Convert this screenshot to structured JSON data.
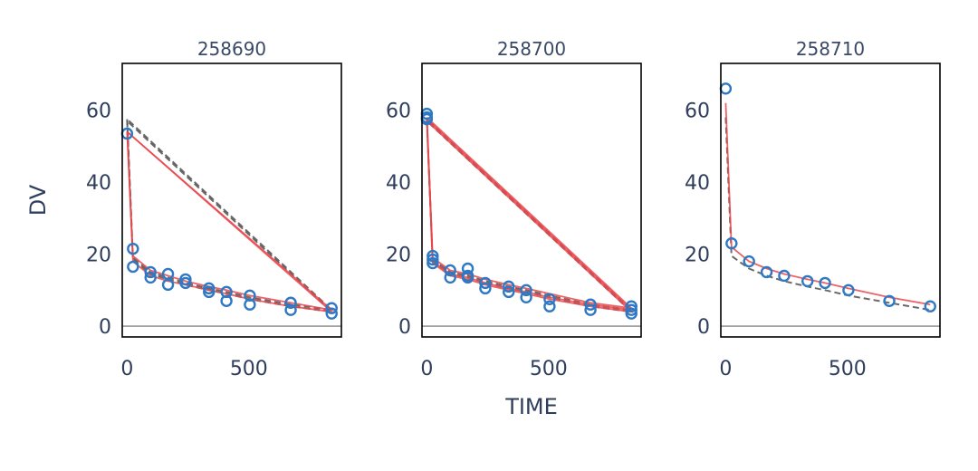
{
  "chart_data": {
    "type": "scatter",
    "xlabel": "TIME",
    "ylabel": "DV",
    "xlim": [
      -20,
      880
    ],
    "ylim": [
      -3,
      73
    ],
    "xticks": [
      "0",
      "500"
    ],
    "yticks": [
      "0",
      "20",
      "40",
      "60"
    ],
    "colors": {
      "observed": "#2f78c4",
      "individual_pred": "#e8474c",
      "population_pred": "#5a5a5a"
    },
    "panels": [
      {
        "title": "258690",
        "observed": [
          {
            "x": 0,
            "y": 53.5
          },
          {
            "x": 24,
            "y": 21.5
          },
          {
            "x": 24,
            "y": 16.5
          },
          {
            "x": 96,
            "y": 15
          },
          {
            "x": 96,
            "y": 13.5
          },
          {
            "x": 168,
            "y": 14.5
          },
          {
            "x": 168,
            "y": 11.5
          },
          {
            "x": 240,
            "y": 13
          },
          {
            "x": 240,
            "y": 12
          },
          {
            "x": 336,
            "y": 10.5
          },
          {
            "x": 336,
            "y": 9.5
          },
          {
            "x": 408,
            "y": 9.5
          },
          {
            "x": 408,
            "y": 7
          },
          {
            "x": 504,
            "y": 8.5
          },
          {
            "x": 504,
            "y": 6
          },
          {
            "x": 672,
            "y": 6.5
          },
          {
            "x": 672,
            "y": 4.5
          },
          {
            "x": 840,
            "y": 5
          },
          {
            "x": 840,
            "y": 3.5
          }
        ],
        "ipred": [
          [
            [
              0,
              54
            ],
            [
              24,
              19.5
            ],
            [
              96,
              15.5
            ],
            [
              168,
              14
            ],
            [
              240,
              12.5
            ],
            [
              336,
              11
            ],
            [
              408,
              10
            ],
            [
              504,
              8.5
            ],
            [
              672,
              6.5
            ],
            [
              840,
              4.5
            ],
            [
              0,
              54
            ]
          ],
          [
            [
              0,
              54
            ],
            [
              24,
              18
            ],
            [
              96,
              14
            ],
            [
              168,
              12.5
            ],
            [
              240,
              11.5
            ],
            [
              336,
              10
            ],
            [
              408,
              9
            ],
            [
              504,
              7.5
            ],
            [
              672,
              5.5
            ],
            [
              840,
              4
            ],
            [
              0,
              54
            ]
          ]
        ],
        "pred": [
          [
            [
              0,
              57.5
            ],
            [
              24,
              19
            ],
            [
              96,
              15
            ],
            [
              168,
              13.5
            ],
            [
              240,
              12
            ],
            [
              336,
              10.5
            ],
            [
              408,
              9.5
            ],
            [
              504,
              8
            ],
            [
              672,
              6
            ],
            [
              840,
              4.5
            ],
            [
              0,
              57.5
            ]
          ],
          [
            [
              0,
              57
            ],
            [
              24,
              18.5
            ],
            [
              96,
              14.5
            ],
            [
              168,
              13
            ],
            [
              240,
              11.5
            ],
            [
              336,
              10
            ],
            [
              408,
              9
            ],
            [
              504,
              7.5
            ],
            [
              672,
              5.5
            ],
            [
              840,
              4
            ],
            [
              0,
              57
            ]
          ]
        ]
      },
      {
        "title": "258700",
        "observed": [
          {
            "x": 0,
            "y": 59
          },
          {
            "x": 0,
            "y": 58
          },
          {
            "x": 0,
            "y": 57.5
          },
          {
            "x": 24,
            "y": 19.5
          },
          {
            "x": 24,
            "y": 18.5
          },
          {
            "x": 24,
            "y": 17.5
          },
          {
            "x": 96,
            "y": 15.5
          },
          {
            "x": 96,
            "y": 13.5
          },
          {
            "x": 168,
            "y": 16
          },
          {
            "x": 168,
            "y": 14
          },
          {
            "x": 168,
            "y": 13.5
          },
          {
            "x": 240,
            "y": 12
          },
          {
            "x": 240,
            "y": 10.5
          },
          {
            "x": 336,
            "y": 11
          },
          {
            "x": 336,
            "y": 9.5
          },
          {
            "x": 408,
            "y": 10
          },
          {
            "x": 408,
            "y": 8
          },
          {
            "x": 504,
            "y": 7.5
          },
          {
            "x": 504,
            "y": 5.5
          },
          {
            "x": 672,
            "y": 6
          },
          {
            "x": 672,
            "y": 4.5
          },
          {
            "x": 840,
            "y": 5.5
          },
          {
            "x": 840,
            "y": 4.5
          },
          {
            "x": 840,
            "y": 3.5
          }
        ],
        "ipred": [
          [
            [
              0,
              58
            ],
            [
              24,
              19
            ],
            [
              96,
              15.5
            ],
            [
              168,
              14.5
            ],
            [
              240,
              13
            ],
            [
              336,
              11.5
            ],
            [
              408,
              10.5
            ],
            [
              504,
              9
            ],
            [
              672,
              6.5
            ],
            [
              840,
              5
            ],
            [
              0,
              58
            ]
          ],
          [
            [
              0,
              57.5
            ],
            [
              24,
              18
            ],
            [
              96,
              14.5
            ],
            [
              168,
              13.5
            ],
            [
              240,
              12
            ],
            [
              336,
              10.5
            ],
            [
              408,
              9.5
            ],
            [
              504,
              8
            ],
            [
              672,
              6
            ],
            [
              840,
              4.5
            ],
            [
              0,
              57.5
            ]
          ],
          [
            [
              0,
              57
            ],
            [
              24,
              17.5
            ],
            [
              96,
              14
            ],
            [
              168,
              13
            ],
            [
              240,
              11.5
            ],
            [
              336,
              10
            ],
            [
              408,
              9
            ],
            [
              504,
              7.5
            ],
            [
              672,
              5.5
            ],
            [
              840,
              4
            ],
            [
              0,
              57
            ]
          ]
        ],
        "pred": [
          [
            [
              0,
              57.5
            ],
            [
              24,
              18.5
            ],
            [
              96,
              15
            ],
            [
              168,
              14
            ],
            [
              240,
              12.5
            ],
            [
              336,
              11
            ],
            [
              408,
              10
            ],
            [
              504,
              8.5
            ],
            [
              672,
              6
            ],
            [
              840,
              4.5
            ],
            [
              0,
              57.5
            ]
          ],
          [
            [
              0,
              57
            ],
            [
              24,
              18
            ],
            [
              96,
              14.5
            ],
            [
              168,
              13.5
            ],
            [
              240,
              12
            ],
            [
              336,
              10.5
            ],
            [
              408,
              9.5
            ],
            [
              504,
              8
            ],
            [
              672,
              5.5
            ],
            [
              840,
              4
            ],
            [
              0,
              57
            ]
          ]
        ]
      },
      {
        "title": "258710",
        "observed": [
          {
            "x": 0,
            "y": 66
          },
          {
            "x": 24,
            "y": 23
          },
          {
            "x": 96,
            "y": 18
          },
          {
            "x": 168,
            "y": 15
          },
          {
            "x": 240,
            "y": 14
          },
          {
            "x": 336,
            "y": 12.5
          },
          {
            "x": 408,
            "y": 12
          },
          {
            "x": 504,
            "y": 10
          },
          {
            "x": 672,
            "y": 7
          },
          {
            "x": 840,
            "y": 5.5
          }
        ],
        "ipred": [
          [
            [
              0,
              62
            ],
            [
              24,
              22
            ],
            [
              96,
              18
            ],
            [
              168,
              16
            ],
            [
              240,
              14.5
            ],
            [
              336,
              13
            ],
            [
              408,
              12
            ],
            [
              504,
              10.5
            ],
            [
              672,
              8
            ],
            [
              840,
              6
            ]
          ]
        ],
        "pred": [
          [
            [
              0,
              58
            ],
            [
              24,
              19.5
            ],
            [
              96,
              16
            ],
            [
              168,
              14
            ],
            [
              240,
              12.5
            ],
            [
              336,
              11
            ],
            [
              408,
              10
            ],
            [
              504,
              8.5
            ],
            [
              672,
              6.5
            ],
            [
              840,
              4.5
            ]
          ]
        ]
      }
    ]
  }
}
